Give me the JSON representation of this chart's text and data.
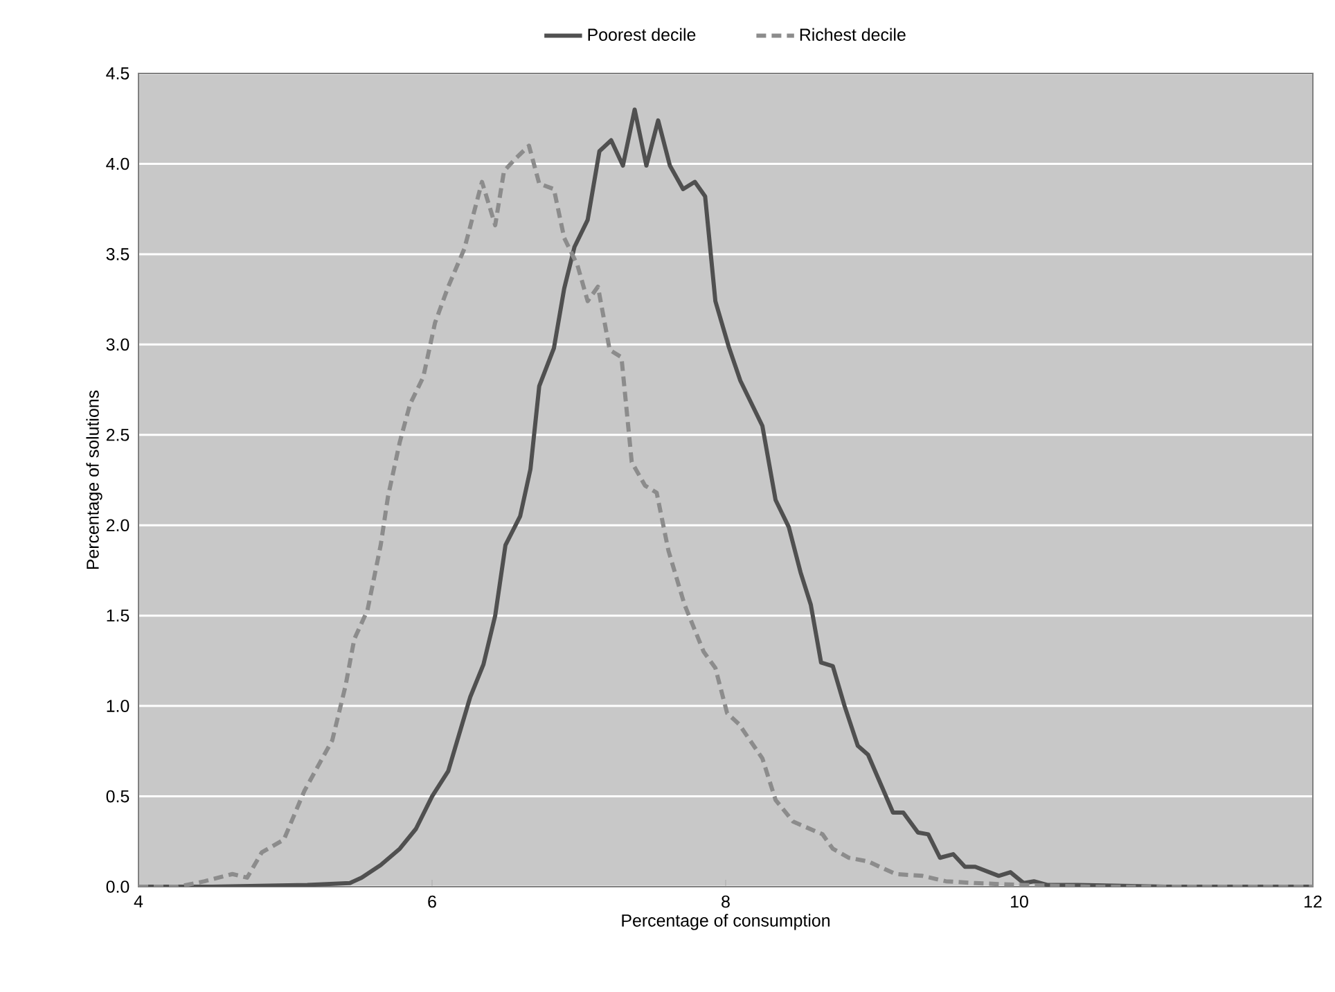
{
  "chart_data": {
    "type": "line",
    "xlabel": "Percentage of consumption",
    "ylabel": "Percentage of solutions",
    "xlim": [
      4,
      12
    ],
    "ylim": [
      0,
      4.5
    ],
    "xticks": [
      4,
      6,
      8,
      10,
      12
    ],
    "yticks": [
      {
        "value": 0,
        "label": "0.0"
      },
      {
        "value": 0.5,
        "label": "0.5"
      },
      {
        "value": 1,
        "label": "1.0"
      },
      {
        "value": 1.5,
        "label": "1.5"
      },
      {
        "value": 2,
        "label": "2.0"
      },
      {
        "value": 2.5,
        "label": "2.5"
      },
      {
        "value": 3,
        "label": "3.0"
      },
      {
        "value": 3.5,
        "label": "3.5"
      },
      {
        "value": 4,
        "label": "4.0"
      },
      {
        "value": 4.5,
        "label": "4.5"
      }
    ],
    "grid": "y",
    "legend": "top",
    "marker": "none",
    "series": [
      {
        "name": "Poorest decile",
        "color": "#505050",
        "line_style": "solid",
        "x": [
          4,
          4.5,
          5.15,
          5.44,
          5.52,
          5.65,
          5.78,
          5.89,
          6.0,
          6.11,
          6.26,
          6.35,
          6.43,
          6.5,
          6.6,
          6.67,
          6.73,
          6.83,
          6.9,
          6.97,
          7.06,
          7.14,
          7.22,
          7.3,
          7.38,
          7.46,
          7.54,
          7.62,
          7.71,
          7.79,
          7.86,
          7.93,
          8.02,
          8.1,
          8.25,
          8.34,
          8.43,
          8.51,
          8.58,
          8.65,
          8.73,
          8.81,
          8.9,
          8.97,
          9.14,
          9.21,
          9.31,
          9.38,
          9.46,
          9.55,
          9.63,
          9.7,
          9.86,
          9.94,
          10.03,
          10.1,
          10.19,
          10.4,
          11,
          12
        ],
        "values": [
          0,
          0,
          0.01,
          0.02,
          0.05,
          0.12,
          0.21,
          0.32,
          0.5,
          0.64,
          1.05,
          1.23,
          1.5,
          1.89,
          2.05,
          2.31,
          2.77,
          2.98,
          3.31,
          3.54,
          3.69,
          4.07,
          4.13,
          3.99,
          4.3,
          3.99,
          4.24,
          3.99,
          3.86,
          3.9,
          3.82,
          3.24,
          2.99,
          2.8,
          2.55,
          2.14,
          1.99,
          1.74,
          1.56,
          1.24,
          1.22,
          1.0,
          0.78,
          0.73,
          0.41,
          0.41,
          0.3,
          0.29,
          0.16,
          0.18,
          0.11,
          0.11,
          0.06,
          0.08,
          0.02,
          0.03,
          0.01,
          0.01,
          0,
          0
        ]
      },
      {
        "name": "Richest decile",
        "color": "#8c8c8c",
        "line_style": "dashed",
        "x": [
          4,
          4.27,
          4.45,
          4.64,
          4.74,
          4.84,
          4.99,
          5.13,
          5.32,
          5.41,
          5.47,
          5.56,
          5.65,
          5.7,
          5.78,
          5.85,
          5.94,
          6.02,
          6.11,
          6.22,
          6.34,
          6.43,
          6.49,
          6.57,
          6.66,
          6.73,
          6.83,
          6.9,
          6.99,
          7.06,
          7.13,
          7.21,
          7.29,
          7.36,
          7.45,
          7.53,
          7.61,
          7.72,
          7.85,
          7.93,
          8.01,
          8.09,
          8.25,
          8.34,
          8.46,
          8.66,
          8.73,
          8.84,
          8.97,
          9.05,
          9.16,
          9.34,
          9.5,
          9.7,
          10.0,
          10.5,
          12
        ],
        "values": [
          0,
          0,
          0.03,
          0.07,
          0.05,
          0.19,
          0.26,
          0.53,
          0.81,
          1.11,
          1.37,
          1.53,
          1.89,
          2.16,
          2.46,
          2.67,
          2.82,
          3.12,
          3.32,
          3.53,
          3.9,
          3.66,
          3.96,
          4.03,
          4.1,
          3.89,
          3.86,
          3.59,
          3.44,
          3.24,
          3.32,
          2.97,
          2.93,
          2.35,
          2.22,
          2.18,
          1.86,
          1.56,
          1.3,
          1.21,
          0.96,
          0.9,
          0.71,
          0.48,
          0.36,
          0.29,
          0.21,
          0.16,
          0.14,
          0.11,
          0.07,
          0.06,
          0.03,
          0.02,
          0.01,
          0,
          0
        ]
      }
    ]
  }
}
